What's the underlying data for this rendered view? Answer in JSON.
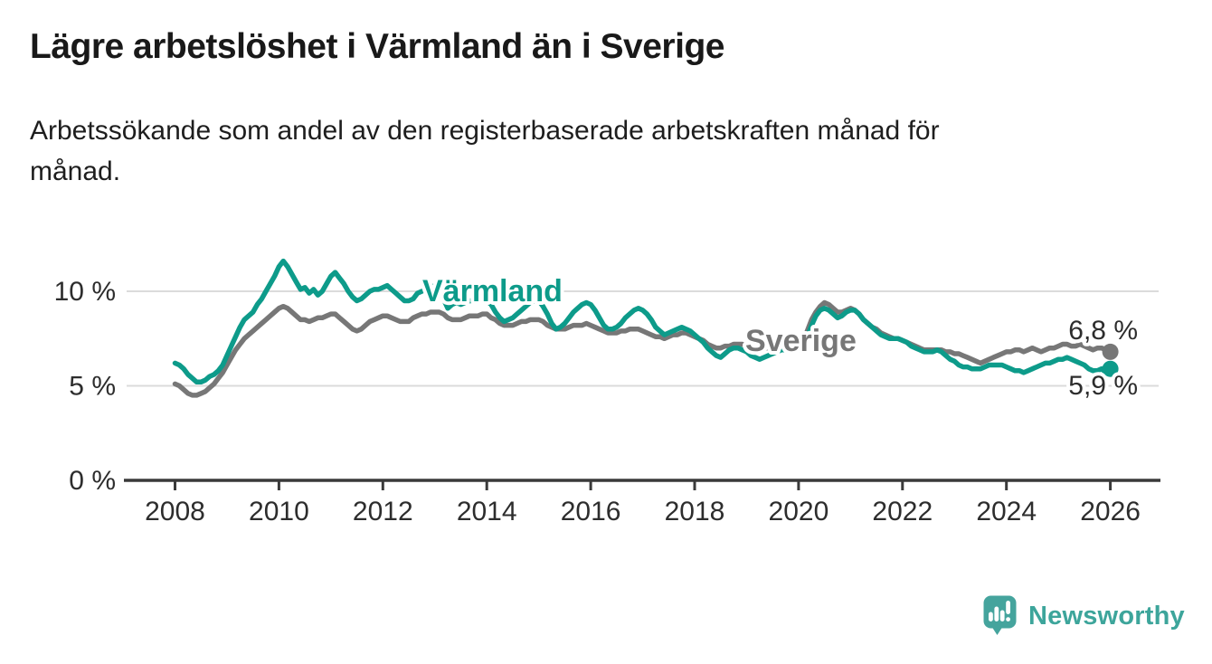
{
  "header": {
    "title": "Lägre arbetslöshet i Värmland än i Sverige",
    "subtitle": "Arbetssökande som andel av den registerbaserade arbetskraften månad för månad."
  },
  "chart_data": {
    "type": "line",
    "title": "Lägre arbetslöshet i Värmland än i Sverige",
    "subtitle": "Arbetssökande som andel av den registerbaserade arbetskraften månad för månad.",
    "frequency": "monthly",
    "start": "2008-01",
    "end": "2026-01",
    "x_ticks": [
      2008,
      2010,
      2012,
      2014,
      2016,
      2018,
      2020,
      2022,
      2024,
      2026
    ],
    "y_ticks": [
      {
        "value": 0,
        "label": "0 %"
      },
      {
        "value": 5,
        "label": "5 %"
      },
      {
        "value": 10,
        "label": "10 %"
      }
    ],
    "ylim": [
      0,
      12.5
    ],
    "grid": "horizontal",
    "legend": "inline-labels",
    "series": [
      {
        "name": "Sverige",
        "color": "#777777",
        "end_label": "6,8 %",
        "last_value": 6.8,
        "values": [
          5.1,
          5.0,
          4.8,
          4.6,
          4.5,
          4.5,
          4.6,
          4.7,
          4.9,
          5.1,
          5.4,
          5.7,
          6.1,
          6.5,
          6.9,
          7.2,
          7.5,
          7.7,
          7.9,
          8.1,
          8.3,
          8.5,
          8.7,
          8.9,
          9.1,
          9.2,
          9.1,
          8.9,
          8.7,
          8.5,
          8.5,
          8.4,
          8.5,
          8.6,
          8.6,
          8.7,
          8.8,
          8.8,
          8.6,
          8.4,
          8.2,
          8.0,
          7.9,
          8.0,
          8.2,
          8.4,
          8.5,
          8.6,
          8.7,
          8.7,
          8.6,
          8.5,
          8.4,
          8.4,
          8.4,
          8.6,
          8.7,
          8.8,
          8.8,
          8.9,
          8.9,
          8.9,
          8.8,
          8.6,
          8.5,
          8.5,
          8.5,
          8.6,
          8.7,
          8.7,
          8.7,
          8.8,
          8.8,
          8.6,
          8.5,
          8.3,
          8.2,
          8.2,
          8.2,
          8.3,
          8.4,
          8.4,
          8.5,
          8.5,
          8.5,
          8.4,
          8.2,
          8.1,
          8.0,
          8.0,
          8.0,
          8.1,
          8.2,
          8.2,
          8.2,
          8.3,
          8.2,
          8.1,
          8.0,
          7.9,
          7.8,
          7.8,
          7.8,
          7.9,
          7.9,
          8.0,
          8.0,
          8.0,
          7.9,
          7.8,
          7.7,
          7.6,
          7.6,
          7.5,
          7.6,
          7.7,
          7.7,
          7.8,
          7.8,
          7.7,
          7.6,
          7.5,
          7.4,
          7.2,
          7.1,
          7.0,
          7.0,
          7.1,
          7.1,
          7.2,
          7.2,
          7.2,
          7.1,
          7.0,
          7.0,
          6.9,
          7.0,
          7.0,
          7.0,
          7.1,
          7.1,
          7.1,
          7.1,
          7.1,
          7.2,
          7.3,
          7.9,
          8.5,
          8.9,
          9.2,
          9.4,
          9.3,
          9.1,
          8.9,
          8.9,
          9.0,
          9.1,
          9.0,
          8.8,
          8.5,
          8.3,
          8.1,
          8.0,
          7.8,
          7.7,
          7.6,
          7.5,
          7.5,
          7.4,
          7.3,
          7.2,
          7.1,
          7.0,
          6.9,
          6.9,
          6.9,
          6.9,
          6.9,
          6.8,
          6.8,
          6.7,
          6.7,
          6.6,
          6.5,
          6.4,
          6.3,
          6.2,
          6.3,
          6.4,
          6.5,
          6.6,
          6.7,
          6.8,
          6.8,
          6.9,
          6.9,
          6.8,
          6.9,
          7.0,
          6.9,
          6.8,
          6.9,
          7.0,
          7.0,
          7.1,
          7.2,
          7.2,
          7.1,
          7.1,
          7.2,
          7.1,
          7.0,
          6.9,
          7.0,
          7.0,
          6.9,
          6.8
        ]
      },
      {
        "name": "Värmland",
        "color": "#0d9b8a",
        "end_label": "5,9 %",
        "last_value": 5.9,
        "values": [
          6.2,
          6.1,
          5.9,
          5.6,
          5.4,
          5.2,
          5.2,
          5.3,
          5.5,
          5.6,
          5.8,
          6.1,
          6.6,
          7.1,
          7.6,
          8.1,
          8.5,
          8.7,
          8.9,
          9.3,
          9.6,
          10.0,
          10.4,
          10.8,
          11.3,
          11.6,
          11.3,
          10.9,
          10.5,
          10.1,
          10.2,
          9.9,
          10.1,
          9.8,
          10.0,
          10.4,
          10.8,
          11.0,
          10.7,
          10.4,
          10.0,
          9.7,
          9.5,
          9.6,
          9.8,
          10.0,
          10.1,
          10.1,
          10.2,
          10.3,
          10.1,
          9.9,
          9.7,
          9.5,
          9.5,
          9.6,
          9.9,
          10.0,
          10.1,
          10.2,
          10.3,
          10.1,
          9.6,
          9.1,
          9.3,
          9.4,
          9.3,
          9.4,
          9.5,
          9.5,
          9.5,
          9.5,
          9.5,
          9.3,
          8.9,
          8.6,
          8.4,
          8.5,
          8.6,
          8.8,
          9.0,
          9.2,
          9.4,
          9.5,
          9.5,
          9.2,
          8.8,
          8.3,
          8.0,
          8.1,
          8.3,
          8.6,
          8.9,
          9.1,
          9.3,
          9.4,
          9.3,
          9.0,
          8.6,
          8.2,
          8.0,
          8.0,
          8.1,
          8.3,
          8.6,
          8.8,
          9.0,
          9.1,
          9.0,
          8.8,
          8.5,
          8.1,
          7.9,
          7.7,
          7.8,
          7.9,
          8.0,
          8.1,
          8.0,
          7.9,
          7.7,
          7.5,
          7.3,
          7.0,
          6.8,
          6.6,
          6.5,
          6.7,
          6.9,
          7.0,
          7.0,
          6.9,
          6.8,
          6.6,
          6.5,
          6.4,
          6.5,
          6.6,
          6.7,
          6.8,
          6.9,
          6.9,
          6.8,
          6.8,
          6.9,
          7.0,
          7.6,
          8.2,
          8.7,
          9.0,
          9.1,
          9.0,
          8.8,
          8.6,
          8.7,
          8.9,
          9.0,
          9.0,
          8.8,
          8.5,
          8.3,
          8.1,
          7.9,
          7.7,
          7.6,
          7.5,
          7.5,
          7.5,
          7.4,
          7.3,
          7.1,
          7.0,
          6.9,
          6.8,
          6.8,
          6.8,
          6.9,
          6.8,
          6.6,
          6.4,
          6.3,
          6.1,
          6.0,
          6.0,
          5.9,
          5.9,
          5.9,
          6.0,
          6.1,
          6.1,
          6.1,
          6.1,
          6.0,
          5.9,
          5.8,
          5.8,
          5.7,
          5.8,
          5.9,
          6.0,
          6.1,
          6.2,
          6.2,
          6.3,
          6.4,
          6.4,
          6.5,
          6.4,
          6.3,
          6.2,
          6.1,
          5.9,
          5.8,
          5.8,
          5.9,
          5.7,
          5.9
        ]
      }
    ]
  },
  "footer": {
    "brand": "Newsworthy"
  },
  "colors": {
    "varmland": "#0d9b8a",
    "sverige": "#777777",
    "grid": "#dbdbdb",
    "axis": "#3a3a3a",
    "tick_text": "#2d2d2d",
    "value_label": "#2d2d2d",
    "logo": "#45a49d"
  }
}
